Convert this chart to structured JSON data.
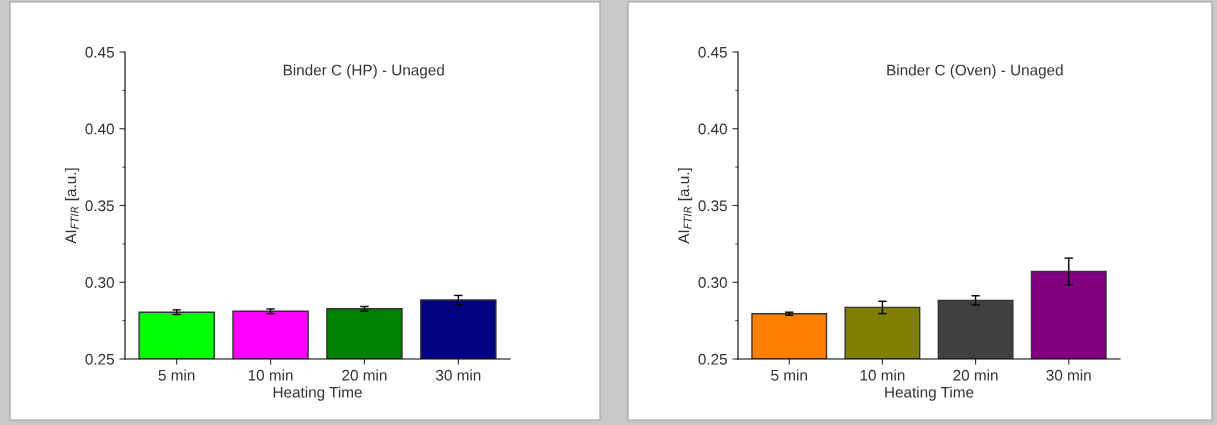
{
  "chart_data": [
    {
      "type": "bar",
      "title": "Binder C (HP) - Unaged",
      "xlabel": "Heating Time",
      "ylabel": "AI$_{FTIR}$ [a.u.]",
      "categories": [
        "5 min",
        "10 min",
        "20 min",
        "30 min"
      ],
      "values": [
        0.2805,
        0.2811,
        0.2827,
        0.2884
      ],
      "errors": [
        0.0015,
        0.0015,
        0.0015,
        0.003
      ],
      "colors": [
        "#00ff00",
        "#ff00ff",
        "#008000",
        "#000080"
      ],
      "ylim": [
        0.25,
        0.45
      ],
      "yticks": [
        {
          "value": 0.25,
          "label": "0.25"
        },
        {
          "value": 0.3,
          "label": "0.30"
        },
        {
          "value": 0.35,
          "label": "0.35"
        },
        {
          "value": 0.4,
          "label": "0.40"
        },
        {
          "value": 0.45,
          "label": "0.45"
        }
      ]
    },
    {
      "type": "bar",
      "title": "Binder C (Oven) - Unaged",
      "xlabel": "Heating Time",
      "ylabel": "AI$_{FTIR}$ [a.u.]",
      "categories": [
        "5 min",
        "10 min",
        "20 min",
        "30 min"
      ],
      "values": [
        0.2795,
        0.2836,
        0.2882,
        0.307
      ],
      "errors": [
        0.001,
        0.004,
        0.003,
        0.0087
      ],
      "colors": [
        "#ff8000",
        "#808000",
        "#404040",
        "#800080"
      ],
      "ylim": [
        0.25,
        0.45
      ],
      "yticks": [
        {
          "value": 0.25,
          "label": "0.25"
        },
        {
          "value": 0.3,
          "label": "0.30"
        },
        {
          "value": 0.35,
          "label": "0.35"
        },
        {
          "value": 0.4,
          "label": "0.40"
        },
        {
          "value": 0.45,
          "label": "0.45"
        }
      ]
    }
  ]
}
